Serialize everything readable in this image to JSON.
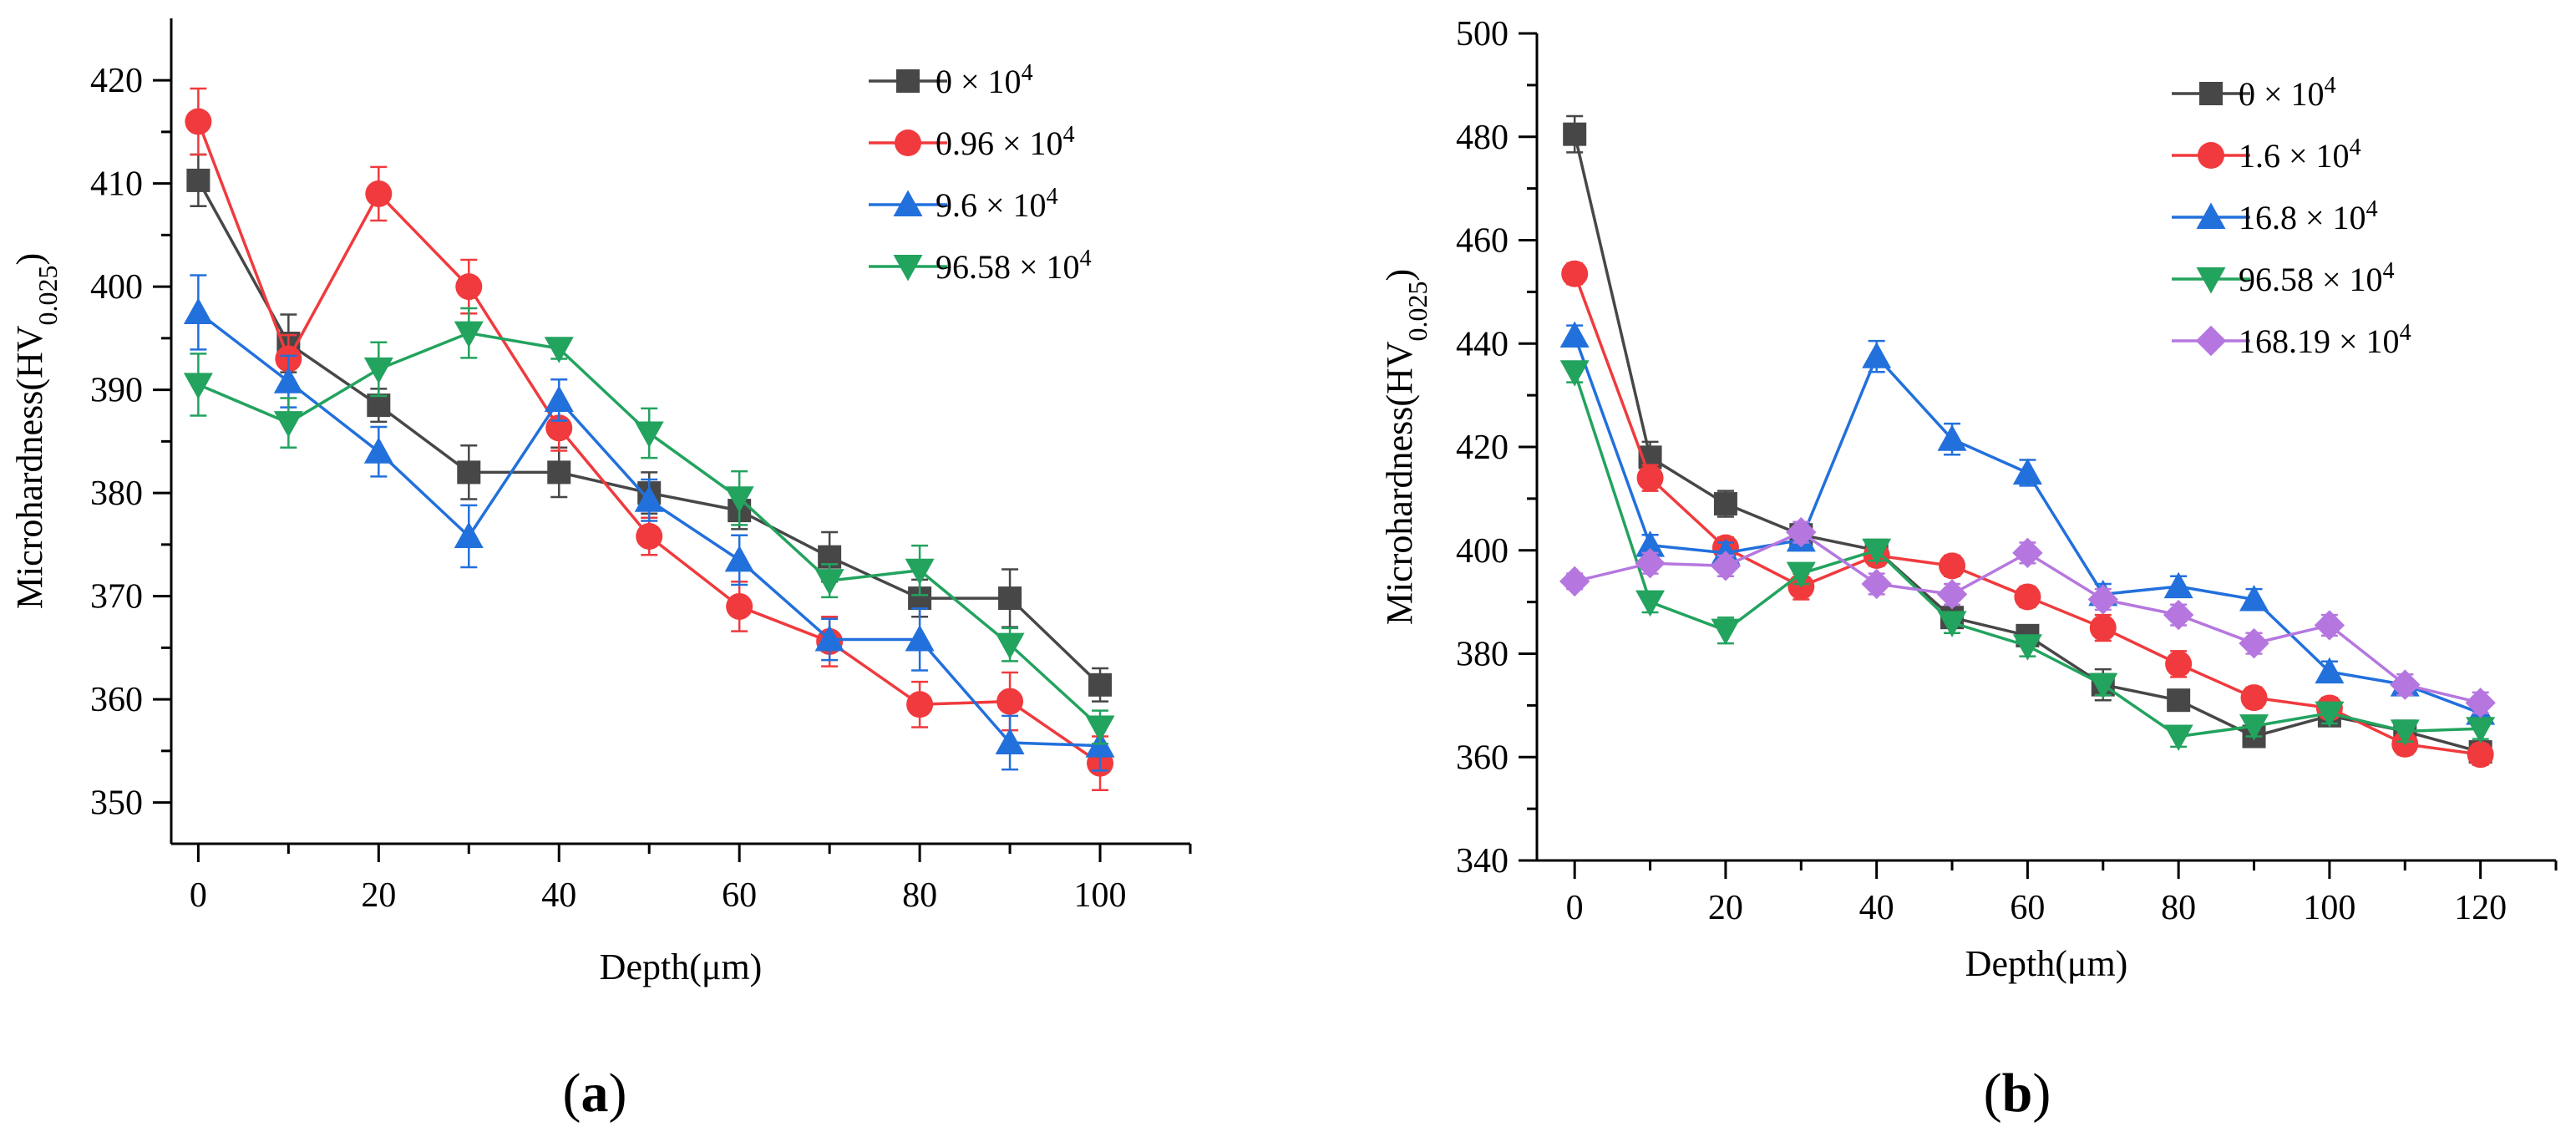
{
  "chart_data": [
    {
      "type": "line",
      "panel_label": "(a)",
      "panel_label_parts": {
        "open": "(",
        "letter": "a",
        "close": ")"
      },
      "xlabel": "Depth(μm)",
      "ylabel": "Microhardness(HV",
      "ylabel_sub": "0.025",
      "ylabel_close": ")",
      "xlim": [
        -3,
        110
      ],
      "ylim": [
        346,
        426
      ],
      "xticks": [
        0,
        20,
        40,
        60,
        80,
        100
      ],
      "yticks": [
        350,
        360,
        370,
        380,
        390,
        400,
        410,
        420
      ],
      "grid": false,
      "legend_position": "top-right",
      "x": [
        0,
        10,
        20,
        30,
        40,
        50,
        60,
        70,
        80,
        90,
        100
      ],
      "series": [
        {
          "name": "0 × 10",
          "sup": "4",
          "color": "#474747",
          "marker": "square",
          "values": [
            410.3,
            394.5,
            388.5,
            382.0,
            382.0,
            380.0,
            378.3,
            373.8,
            369.8,
            369.8,
            361.4
          ],
          "errors": [
            2.5,
            2.8,
            1.6,
            2.6,
            2.4,
            2.0,
            1.8,
            2.4,
            1.8,
            2.8,
            1.6
          ]
        },
        {
          "name": "0.96 × 10",
          "sup": "4",
          "color": "#f03a3d",
          "marker": "circle",
          "values": [
            416.0,
            393.0,
            409.0,
            400.0,
            386.3,
            375.8,
            369.0,
            365.6,
            359.5,
            359.8,
            353.8
          ],
          "errors": [
            3.2,
            2.3,
            2.6,
            2.6,
            2.2,
            1.8,
            2.4,
            2.4,
            2.2,
            2.8,
            2.6
          ]
        },
        {
          "name": "9.6 × 10",
          "sup": "4",
          "color": "#2270dc",
          "marker": "triangle-up",
          "values": [
            397.5,
            390.8,
            384.0,
            375.8,
            389.0,
            379.3,
            373.5,
            365.8,
            365.8,
            355.8,
            355.5
          ],
          "errors": [
            3.6,
            2.5,
            2.4,
            3.0,
            2.0,
            2.0,
            2.4,
            2.0,
            3.0,
            2.6,
            2.4
          ]
        },
        {
          "name": "96.58 × 10",
          "sup": "4",
          "color": "#22a35e",
          "marker": "triangle-down",
          "values": [
            390.5,
            386.8,
            392.0,
            395.5,
            394.0,
            385.8,
            379.5,
            371.5,
            372.5,
            365.3,
            357.3
          ],
          "errors": [
            3.0,
            2.4,
            2.6,
            2.4,
            1.0,
            2.4,
            2.6,
            1.6,
            2.4,
            1.6,
            1.6
          ]
        }
      ]
    },
    {
      "type": "line",
      "panel_label": "(b)",
      "panel_label_parts": {
        "open": "(",
        "letter": "b",
        "close": ")"
      },
      "xlabel": "Depth(μm)",
      "ylabel": "Microhardness(HV",
      "ylabel_sub": "0.025",
      "ylabel_close": ")",
      "xlim": [
        -5,
        130
      ],
      "ylim": [
        340,
        500
      ],
      "xticks": [
        0,
        20,
        40,
        60,
        80,
        100,
        120
      ],
      "yticks": [
        340,
        360,
        380,
        400,
        420,
        440,
        460,
        480,
        500
      ],
      "grid": false,
      "legend_position": "top-right",
      "x": [
        0,
        10,
        20,
        30,
        40,
        50,
        60,
        70,
        80,
        90,
        100,
        110,
        120
      ],
      "series": [
        {
          "name": "0 × 10",
          "sup": "4",
          "color": "#474747",
          "marker": "square",
          "values": [
            480.5,
            418.0,
            409.0,
            403.0,
            400.0,
            387.0,
            383.5,
            374.0,
            371.0,
            364.0,
            368.0,
            365.0,
            361.0
          ],
          "errors": [
            3.5,
            3.0,
            2.5,
            2.0,
            2.0,
            2.0,
            2.0,
            3.0,
            2.0,
            2.0,
            2.0,
            2.0,
            2.0
          ]
        },
        {
          "name": "1.6 × 10",
          "sup": "4",
          "color": "#f03a3d",
          "marker": "circle",
          "values": [
            453.5,
            414.0,
            400.5,
            393.0,
            399.0,
            397.0,
            391.0,
            385.0,
            378.0,
            371.5,
            369.5,
            362.5,
            360.5
          ],
          "errors": [
            2.0,
            2.5,
            2.0,
            2.5,
            2.0,
            2.0,
            2.0,
            2.5,
            2.5,
            2.0,
            2.0,
            2.0,
            2.0
          ]
        },
        {
          "name": "16.8 × 10",
          "sup": "4",
          "color": "#2270dc",
          "marker": "triangle-up",
          "values": [
            441.5,
            401.0,
            399.5,
            402.0,
            437.5,
            421.5,
            415.0,
            391.5,
            393.0,
            390.5,
            376.5,
            374.0,
            368.5
          ],
          "errors": [
            2.0,
            2.0,
            2.0,
            2.0,
            3.0,
            3.0,
            2.5,
            2.0,
            2.0,
            2.0,
            2.0,
            2.0,
            2.0
          ]
        },
        {
          "name": "96.58 × 10",
          "sup": "4",
          "color": "#22a35e",
          "marker": "triangle-down",
          "values": [
            434.5,
            390.0,
            384.5,
            395.5,
            400.0,
            386.0,
            381.5,
            374.0,
            364.0,
            366.0,
            368.5,
            365.0,
            365.5
          ],
          "errors": [
            2.0,
            2.0,
            2.5,
            2.0,
            2.0,
            2.0,
            2.0,
            2.0,
            2.0,
            2.0,
            2.0,
            2.0,
            2.0
          ]
        },
        {
          "name": "168.19 × 10",
          "sup": "4",
          "color": "#b577df",
          "marker": "diamond",
          "values": [
            394.0,
            397.5,
            397.0,
            403.5,
            393.5,
            391.5,
            399.5,
            390.5,
            387.5,
            382.0,
            385.5,
            374.0,
            370.5
          ],
          "errors": [
            1.5,
            2.0,
            2.0,
            2.0,
            2.0,
            2.0,
            2.0,
            2.0,
            2.0,
            2.0,
            2.0,
            2.0,
            2.0
          ]
        }
      ]
    }
  ]
}
